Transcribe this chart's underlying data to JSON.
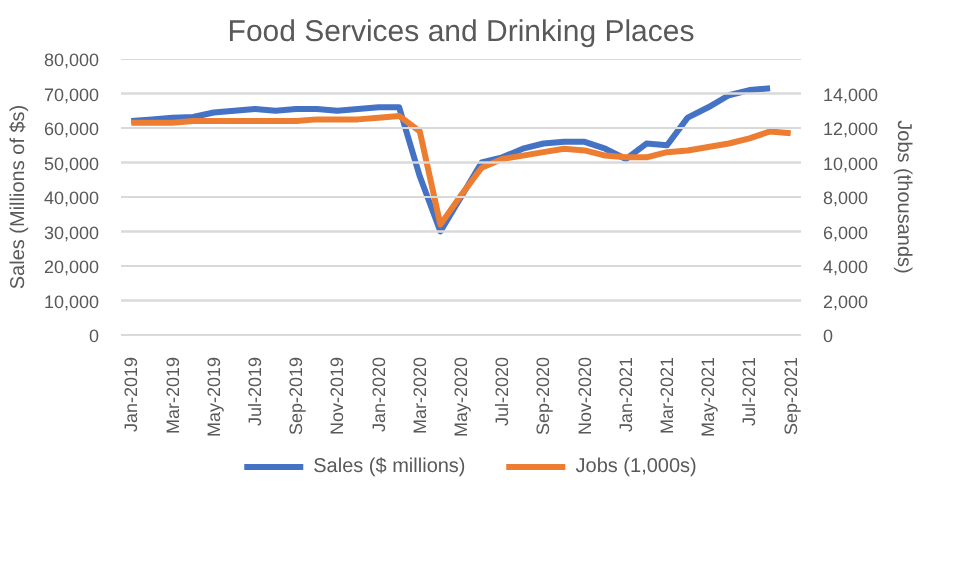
{
  "chart_data": {
    "type": "line",
    "title": "Food Services and Drinking Places",
    "ylabel": "Sales (Millions of $s)",
    "y2label": "Jobs (thousands)",
    "categories": [
      "Jan-2019",
      null,
      "Mar-2019",
      null,
      "May-2019",
      null,
      "Jul-2019",
      null,
      "Sep-2019",
      null,
      "Nov-2019",
      null,
      "Jan-2020",
      null,
      "Mar-2020",
      null,
      "May-2020",
      null,
      "Jul-2020",
      null,
      "Sep-2020",
      null,
      "Nov-2020",
      null,
      "Jan-2021",
      null,
      "Mar-2021",
      null,
      "May-2021",
      null,
      "Jul-2021",
      null,
      "Sep-2021"
    ],
    "series": [
      {
        "name": "Sales ($ millions)",
        "color": "#4472c4",
        "values": [
          62000,
          62500,
          63000,
          63200,
          64500,
          65000,
          65500,
          65000,
          65500,
          65500,
          65000,
          65500,
          66000,
          66000,
          46000,
          30000,
          40000,
          50000,
          51500,
          54000,
          55500,
          56000,
          56000,
          54000,
          51000,
          55500,
          55000,
          63000,
          66000,
          69500,
          71000,
          71500,
          null
        ]
      },
      {
        "name": "Jobs (1,000s)",
        "color": "#ed7d31",
        "axis": "y2",
        "values": [
          12300,
          12300,
          12300,
          12400,
          12400,
          12400,
          12400,
          12400,
          12400,
          12500,
          12500,
          12500,
          12600,
          12700,
          11800,
          6400,
          8100,
          9700,
          10200,
          10400,
          10600,
          10800,
          10700,
          10400,
          10300,
          10300,
          10600,
          10700,
          10900,
          11100,
          11400,
          11800,
          11700
        ]
      }
    ],
    "ylim": [
      0,
      80000
    ],
    "yticks": [
      {
        "value": 0,
        "label": "0"
      },
      {
        "value": 10000,
        "label": "10,000"
      },
      {
        "value": 20000,
        "label": "20,000"
      },
      {
        "value": 30000,
        "label": "30,000"
      },
      {
        "value": 40000,
        "label": "40,000"
      },
      {
        "value": 50000,
        "label": "50,000"
      },
      {
        "value": 60000,
        "label": "60,000"
      },
      {
        "value": 70000,
        "label": "70,000"
      },
      {
        "value": 80000,
        "label": "80,000"
      }
    ],
    "y2lim": [
      0,
      16000
    ],
    "y2ticks": [
      {
        "value": 0,
        "label": "0"
      },
      {
        "value": 2000,
        "label": "2,000"
      },
      {
        "value": 4000,
        "label": "4,000"
      },
      {
        "value": 6000,
        "label": "6,000"
      },
      {
        "value": 8000,
        "label": "8,000"
      },
      {
        "value": 10000,
        "label": "10,000"
      },
      {
        "value": 12000,
        "label": "12,000"
      },
      {
        "value": 14000,
        "label": "14,000"
      },
      {
        "value": 16000,
        "label": null
      }
    ],
    "grid": "y",
    "legend": "bottom",
    "marker": "none",
    "line_style": "solid"
  }
}
